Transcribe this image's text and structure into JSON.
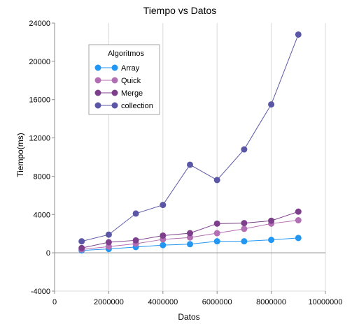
{
  "chart_data": {
    "type": "line",
    "title": "Tiempo vs Datos",
    "xlabel": "Datos",
    "ylabel": "Tiempo(ms)",
    "xlim": [
      0,
      10000000
    ],
    "ylim": [
      -4000,
      24000
    ],
    "xticks": [
      0,
      2000000,
      4000000,
      6000000,
      8000000,
      10000000
    ],
    "xtick_labels": [
      "0",
      "2000000",
      "4000000",
      "6000000",
      "8000000",
      "10000000"
    ],
    "yticks": [
      -4000,
      0,
      4000,
      8000,
      12000,
      16000,
      20000,
      24000
    ],
    "ytick_labels": [
      "-4000",
      "0",
      "4000",
      "8000",
      "12000",
      "16000",
      "20000",
      "24000"
    ],
    "grid": "vertical",
    "legend_title": "Algoritmos",
    "legend_position": "top-left",
    "x": [
      1000000,
      2000000,
      3000000,
      4000000,
      5000000,
      6000000,
      7000000,
      8000000,
      9000000
    ],
    "series": [
      {
        "name": "Array",
        "color": "#2196f3",
        "values": [
          250,
          400,
          600,
          800,
          900,
          1200,
          1200,
          1350,
          1550
        ]
      },
      {
        "name": "Quick",
        "color": "#b36fb3",
        "values": [
          350,
          650,
          950,
          1400,
          1600,
          2050,
          2500,
          3050,
          3400
        ]
      },
      {
        "name": "Merge",
        "color": "#7d3f8c",
        "values": [
          500,
          1100,
          1300,
          1800,
          2050,
          3050,
          3100,
          3350,
          4300
        ]
      },
      {
        "name": "collection",
        "color": "#5b57a6",
        "values": [
          1200,
          1900,
          4100,
          5000,
          9200,
          7600,
          10800,
          15500,
          22800
        ]
      }
    ]
  }
}
